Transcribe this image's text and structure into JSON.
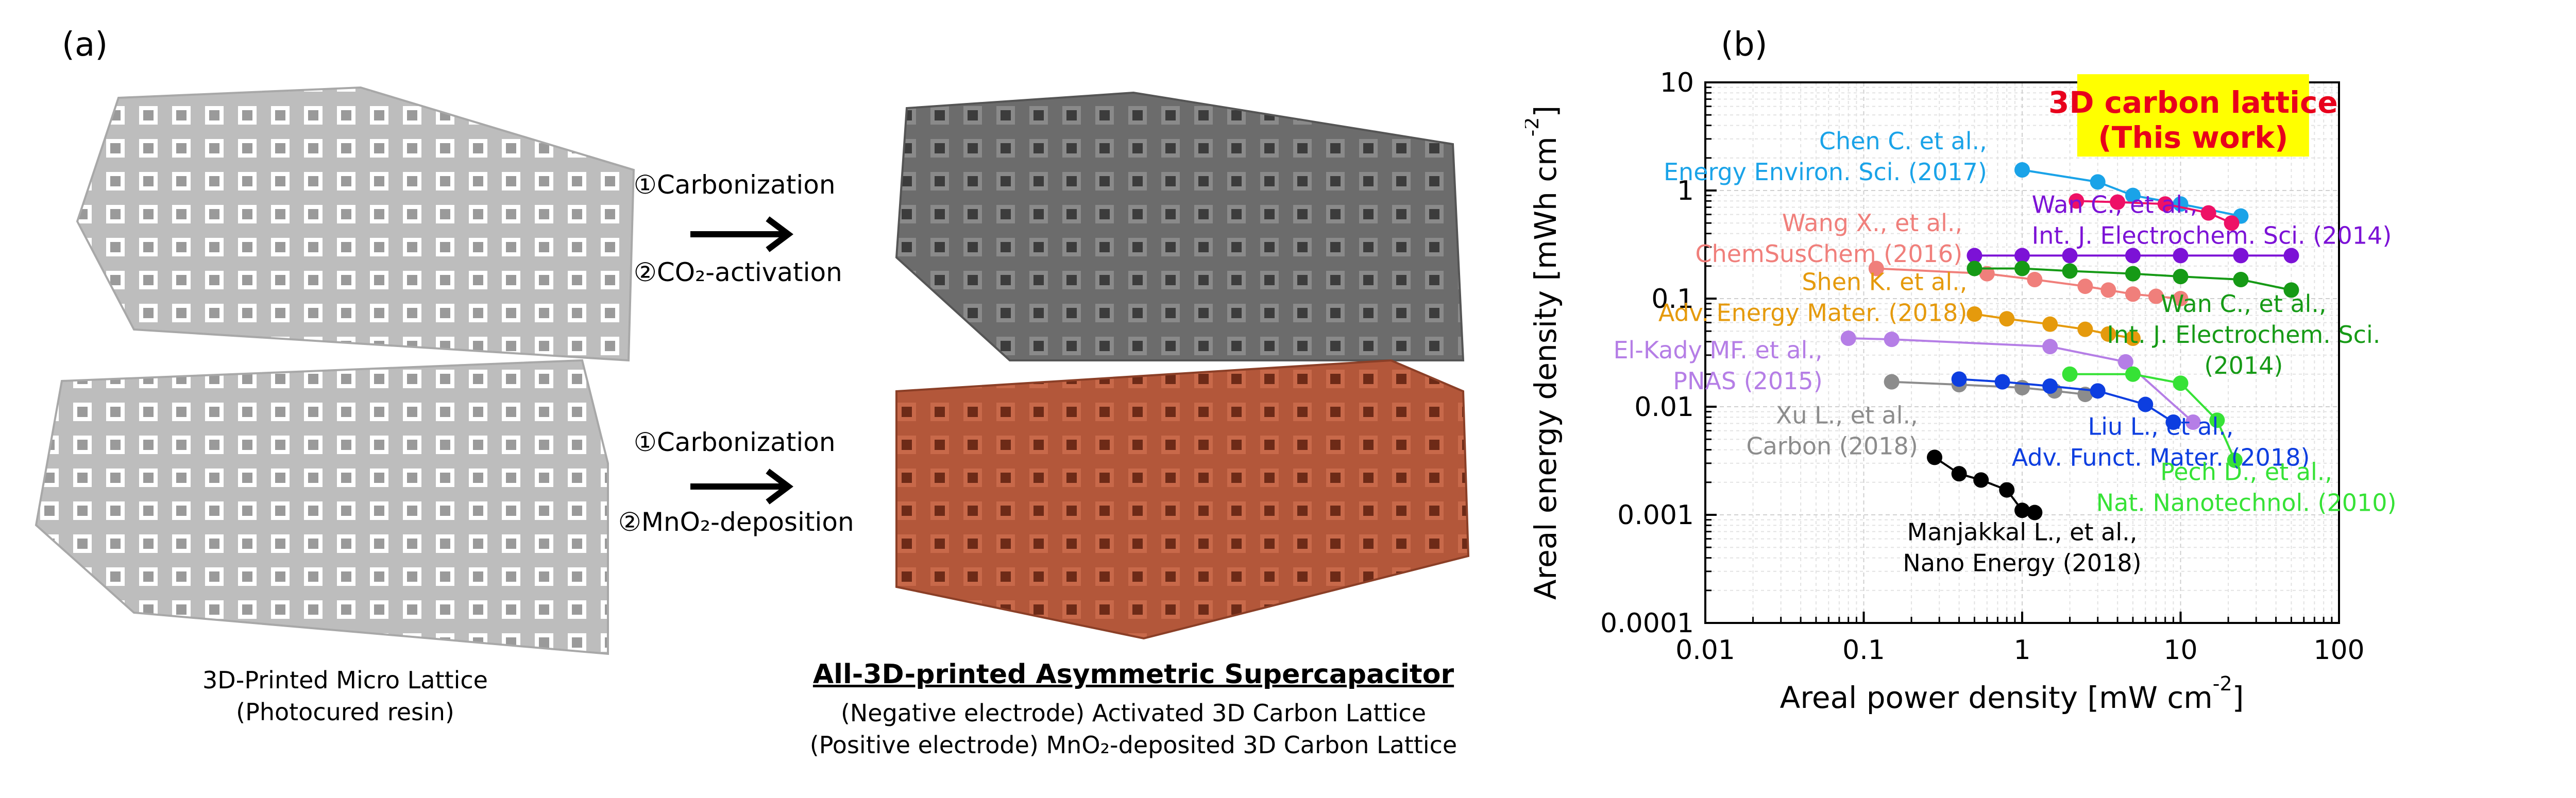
{
  "panel_a": {
    "label": "(a)",
    "step_top_1": "①Carbonization",
    "step_top_2": "②CO₂-activation",
    "step_bottom_1": "①Carbonization",
    "step_bottom_2": "②MnO₂-deposition",
    "left_caption_1": "3D-Printed Micro Lattice",
    "left_caption_2": "(Photocured resin)",
    "right_title": "All-3D-printed Asymmetric Supercapacitor",
    "right_caption_1": "(Negative electrode) Activated 3D Carbon Lattice",
    "right_caption_2": "(Positive electrode) MnO₂-deposited 3D Carbon Lattice",
    "colors": {
      "resin": "#c8c8c8",
      "carbon": "#6e6e6e",
      "mno2": "#b3573a"
    }
  },
  "chart_data": {
    "type": "scatter",
    "panel_label": "(b)",
    "xlabel": "Areal power density [mW cm",
    "xlabel_sup": "-2",
    "xlabel_end": "]",
    "ylabel": "Areal energy density [mWh cm",
    "ylabel_sup": "-2",
    "ylabel_end": "]",
    "xscale": "log",
    "yscale": "log",
    "xlim": [
      0.01,
      100
    ],
    "ylim": [
      0.0001,
      10
    ],
    "xticks": [
      "0.01",
      "0.1",
      "1",
      "10",
      "100"
    ],
    "yticks": [
      "0.0001",
      "0.001",
      "0.01",
      "0.1",
      "1",
      "10"
    ],
    "grid": true,
    "highlight": {
      "line1": "3D carbon lattice",
      "line2": "(This work)",
      "color": "#e8001c",
      "bg": "#ffff00"
    },
    "series": [
      {
        "name": "Chen C. et al., Energy Environ. Sci. (2017)",
        "label1": "Chen C. et al.,",
        "label2": "Energy Environ. Sci. (2017)",
        "color": "#1aa3e8",
        "x": [
          1.0,
          3.0,
          5.0,
          10.0,
          24.0
        ],
        "y": [
          1.55,
          1.2,
          0.9,
          0.75,
          0.58
        ]
      },
      {
        "name": "This work",
        "color": "#ee1166",
        "x": [
          2.2,
          4.0,
          8.0,
          15.0,
          21.0
        ],
        "y": [
          0.8,
          0.78,
          0.75,
          0.62,
          0.5
        ]
      },
      {
        "name": "Wan C., et al., Int. J. Electrochem. Sci. (2014)",
        "label1": "Wan C., et al.,",
        "label2": "Int. J. Electrochem. Sci. (2014)",
        "color": "#7c12d6",
        "x": [
          0.5,
          1.0,
          2.0,
          5.0,
          10.0,
          24.0,
          50.0
        ],
        "y": [
          0.25,
          0.25,
          0.25,
          0.25,
          0.25,
          0.25,
          0.25
        ]
      },
      {
        "name": "Wang X., et al., ChemSusChem (2016)",
        "label1": "Wang X., et al.,",
        "label2": "ChemSusChem (2016)",
        "color": "#f07f7b",
        "x": [
          0.12,
          0.6,
          1.2,
          2.5,
          3.5,
          5.0,
          7.0,
          10.0
        ],
        "y": [
          0.19,
          0.17,
          0.15,
          0.13,
          0.12,
          0.11,
          0.105,
          0.1
        ]
      },
      {
        "name": "Wan C., et al., Int. J. Electrochem. Sci. (2014) green",
        "label1": "Wan C., et al.,",
        "label2": "Int. J. Electrochem. Sci.",
        "label3": "(2014)",
        "color": "#169a16",
        "x": [
          0.5,
          1.0,
          2.0,
          5.0,
          10.0,
          24.0,
          50.0
        ],
        "y": [
          0.19,
          0.19,
          0.18,
          0.17,
          0.16,
          0.15,
          0.12
        ]
      },
      {
        "name": "Shen K. et al., Adv. Energy Mater. (2018)",
        "label1": "Shen K. et al.,",
        "label2": "Adv. Energy Mater. (2018)",
        "color": "#e59a0c",
        "x": [
          0.5,
          0.8,
          1.5,
          2.5,
          3.5,
          5.0
        ],
        "y": [
          0.072,
          0.065,
          0.058,
          0.052,
          0.047,
          0.043
        ]
      },
      {
        "name": "El-Kady MF. et al., PNAS (2015)",
        "label1": "El-Kady MF. et al.,",
        "label2": "PNAS (2015)",
        "color": "#b57ee6",
        "x": [
          0.08,
          0.15,
          1.5,
          4.5,
          12.0
        ],
        "y": [
          0.043,
          0.042,
          0.036,
          0.026,
          0.0072
        ]
      },
      {
        "name": "Xu L., et al., Carbon (2018)",
        "label1": "Xu L., et al.,",
        "label2": "Carbon (2018)",
        "color": "#8c8c8c",
        "x": [
          0.15,
          0.4,
          1.0,
          1.6,
          2.5
        ],
        "y": [
          0.017,
          0.016,
          0.015,
          0.014,
          0.013
        ]
      },
      {
        "name": "Liu L., et al., Adv. Funct. Mater. (2018)",
        "label1": "Liu L., et al.,",
        "label2": "Adv. Funct. Mater. (2018)",
        "color": "#0d3ee0",
        "x": [
          0.4,
          0.75,
          1.5,
          3.0,
          6.0,
          9.0
        ],
        "y": [
          0.018,
          0.017,
          0.0155,
          0.014,
          0.0105,
          0.0072
        ]
      },
      {
        "name": "Pech D., et al., Nat. Nanotechnol. (2010)",
        "label1": "Pech D., et al.,",
        "label2": "Nat. Nanotechnol. (2010)",
        "color": "#36e236",
        "x": [
          2.0,
          5.0,
          10.0,
          17.0,
          22.0
        ],
        "y": [
          0.02,
          0.02,
          0.0165,
          0.0075,
          0.0032
        ]
      },
      {
        "name": "Manjakkal L., et al., Nano Energy (2018)",
        "label1": "Manjakkal L., et al.,",
        "label2": "Nano Energy (2018)",
        "color": "#000000",
        "x": [
          0.28,
          0.4,
          0.55,
          0.8,
          1.0,
          1.2
        ],
        "y": [
          0.0034,
          0.0024,
          0.0021,
          0.0017,
          0.0011,
          0.00105
        ]
      }
    ]
  }
}
